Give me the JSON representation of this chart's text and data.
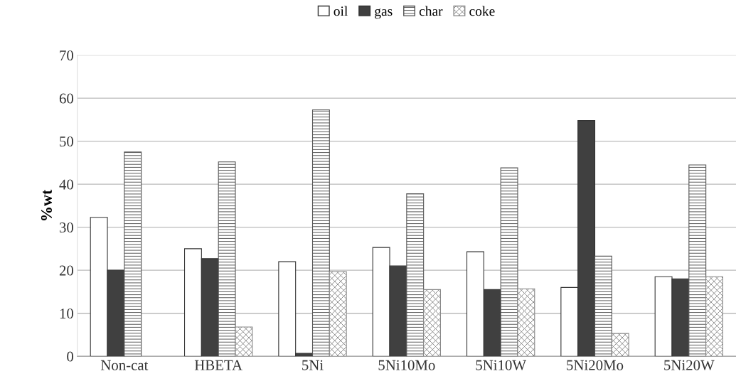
{
  "chart_data": {
    "type": "bar",
    "ylabel": "%wt",
    "categories": [
      "Non-cat",
      "HBETA",
      "5Ni",
      "5Ni10Mo",
      "5Ni10W",
      "5Ni20Mo",
      "5Ni20W"
    ],
    "series": [
      {
        "name": "oil",
        "color": "#ffffff",
        "values": [
          32.3,
          25,
          22,
          25.3,
          24.3,
          16,
          18.5
        ]
      },
      {
        "name": "gas",
        "color": "#404040",
        "values": [
          20,
          22.7,
          0.7,
          21,
          15.5,
          54.8,
          18
        ]
      },
      {
        "name": "char",
        "color": "#555555",
        "values": [
          47.5,
          45.2,
          57.3,
          37.8,
          43.8,
          23.3,
          44.5
        ]
      },
      {
        "name": "coke",
        "color": "#888888",
        "values": [
          null,
          6.8,
          19.7,
          15.5,
          15.7,
          5.3,
          18.5
        ]
      }
    ],
    "ylim": [
      0,
      70
    ],
    "yticks": [
      0,
      10,
      20,
      30,
      40,
      50,
      60,
      70
    ],
    "grid": "y",
    "legend": "top"
  }
}
